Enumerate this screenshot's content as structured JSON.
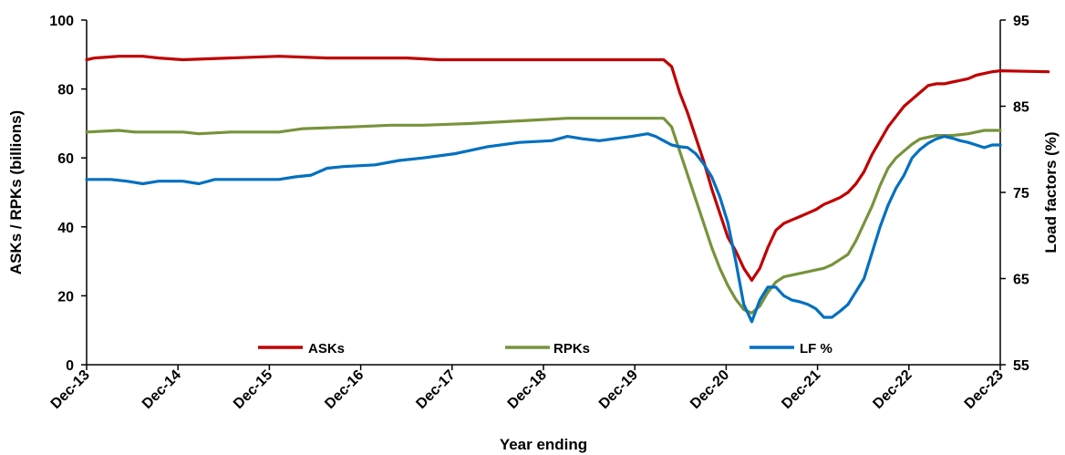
{
  "chart_data": {
    "type": "line",
    "xlabel": "Year ending",
    "ylabel": "ASKs / RPKs (billions)",
    "y2label": "Load factors (%)",
    "x_ticks": [
      "Dec-13",
      "Dec-14",
      "Dec-15",
      "Dec-16",
      "Dec-17",
      "Dec-18",
      "Dec-19",
      "Dec-20",
      "Dec-21",
      "Dec-22",
      "Dec-23"
    ],
    "ylim": [
      0,
      100
    ],
    "y_ticks": [
      0,
      20,
      40,
      60,
      80,
      100
    ],
    "y2lim": [
      55,
      95
    ],
    "y2_ticks": [
      55,
      65,
      75,
      85,
      95
    ],
    "grid": false,
    "legend": "bottom-inside",
    "series": [
      {
        "name": "ASKs",
        "axis": "left",
        "color": "#C00000",
        "values": [
          [
            0,
            88.5
          ],
          [
            1,
            89
          ],
          [
            4,
            89.5
          ],
          [
            7,
            89.5
          ],
          [
            9,
            89
          ],
          [
            12,
            88.5
          ],
          [
            24,
            89.5
          ],
          [
            30,
            89
          ],
          [
            40,
            89
          ],
          [
            44,
            88.5
          ],
          [
            58,
            88.5
          ],
          [
            60,
            88.5
          ],
          [
            64,
            88.5
          ],
          [
            70,
            88.5
          ],
          [
            72,
            88.5
          ],
          [
            73,
            86.5
          ],
          [
            74,
            79
          ],
          [
            75,
            73
          ],
          [
            76,
            66
          ],
          [
            77,
            59
          ],
          [
            78,
            51
          ],
          [
            79,
            44
          ],
          [
            80,
            37
          ],
          [
            81,
            33
          ],
          [
            82,
            28
          ],
          [
            83,
            24.5
          ],
          [
            84,
            28
          ],
          [
            85,
            34
          ],
          [
            86,
            39
          ],
          [
            87,
            41
          ],
          [
            88,
            42
          ],
          [
            89,
            43
          ],
          [
            90,
            44
          ],
          [
            91,
            45
          ],
          [
            92,
            46.5
          ],
          [
            93,
            47.5
          ],
          [
            94,
            48.5
          ],
          [
            95,
            50
          ],
          [
            96,
            52.5
          ],
          [
            97,
            56
          ],
          [
            98,
            61
          ],
          [
            99,
            65
          ],
          [
            100,
            69
          ],
          [
            101,
            72
          ],
          [
            102,
            75
          ],
          [
            103,
            77
          ],
          [
            104,
            79
          ],
          [
            105,
            81
          ],
          [
            106,
            81.5
          ],
          [
            107,
            81.5
          ],
          [
            108,
            82
          ],
          [
            109,
            82.5
          ],
          [
            110,
            83
          ],
          [
            111,
            84
          ],
          [
            112,
            84.5
          ],
          [
            113,
            85
          ],
          [
            114,
            85.3
          ],
          [
            120,
            85
          ]
        ]
      },
      {
        "name": "RPKs",
        "axis": "left",
        "color": "#77933C",
        "values": [
          [
            0,
            67.5
          ],
          [
            4,
            68
          ],
          [
            6,
            67.5
          ],
          [
            12,
            67.5
          ],
          [
            14,
            67
          ],
          [
            18,
            67.5
          ],
          [
            24,
            67.5
          ],
          [
            27,
            68.5
          ],
          [
            33,
            69
          ],
          [
            38,
            69.5
          ],
          [
            42,
            69.5
          ],
          [
            48,
            70
          ],
          [
            52,
            70.5
          ],
          [
            56,
            71
          ],
          [
            60,
            71.5
          ],
          [
            70,
            71.5
          ],
          [
            72,
            71.5
          ],
          [
            73,
            69
          ],
          [
            74,
            62
          ],
          [
            75,
            55
          ],
          [
            76,
            48
          ],
          [
            77,
            41
          ],
          [
            78,
            34
          ],
          [
            79,
            28
          ],
          [
            80,
            23
          ],
          [
            81,
            19
          ],
          [
            82,
            16
          ],
          [
            83,
            15
          ],
          [
            84,
            17
          ],
          [
            85,
            21
          ],
          [
            86,
            24
          ],
          [
            87,
            25.5
          ],
          [
            88,
            26
          ],
          [
            89,
            26.5
          ],
          [
            90,
            27
          ],
          [
            91,
            27.5
          ],
          [
            92,
            28
          ],
          [
            93,
            29
          ],
          [
            94,
            30.5
          ],
          [
            95,
            32
          ],
          [
            96,
            36
          ],
          [
            97,
            41
          ],
          [
            98,
            46
          ],
          [
            99,
            52
          ],
          [
            100,
            57
          ],
          [
            101,
            60
          ],
          [
            102,
            62
          ],
          [
            103,
            64
          ],
          [
            104,
            65.5
          ],
          [
            105,
            66
          ],
          [
            106,
            66.5
          ],
          [
            108,
            66.5
          ],
          [
            110,
            67
          ],
          [
            112,
            68
          ],
          [
            114,
            68
          ]
        ]
      },
      {
        "name": "LF %",
        "axis": "right",
        "color": "#0070C0",
        "values": [
          [
            0,
            76.5
          ],
          [
            3,
            76.5
          ],
          [
            5,
            76.3
          ],
          [
            7,
            76
          ],
          [
            9,
            76.3
          ],
          [
            12,
            76.3
          ],
          [
            14,
            76
          ],
          [
            16,
            76.5
          ],
          [
            24,
            76.5
          ],
          [
            26,
            76.8
          ],
          [
            28,
            77
          ],
          [
            30,
            77.8
          ],
          [
            32,
            78
          ],
          [
            36,
            78.2
          ],
          [
            39,
            78.7
          ],
          [
            42,
            79
          ],
          [
            46,
            79.5
          ],
          [
            50,
            80.3
          ],
          [
            54,
            80.8
          ],
          [
            58,
            81
          ],
          [
            60,
            81.5
          ],
          [
            62,
            81.2
          ],
          [
            64,
            81
          ],
          [
            68,
            81.5
          ],
          [
            70,
            81.8
          ],
          [
            71,
            81.5
          ],
          [
            72,
            81
          ],
          [
            73,
            80.5
          ],
          [
            74,
            80.3
          ],
          [
            75,
            80.2
          ],
          [
            76,
            79.5
          ],
          [
            77,
            78.3
          ],
          [
            78,
            76.8
          ],
          [
            79,
            74.5
          ],
          [
            80,
            71.5
          ],
          [
            81,
            67
          ],
          [
            82,
            62
          ],
          [
            83,
            60
          ],
          [
            84,
            62.5
          ],
          [
            85,
            64
          ],
          [
            86,
            64
          ],
          [
            87,
            63
          ],
          [
            88,
            62.5
          ],
          [
            89,
            62.3
          ],
          [
            90,
            62
          ],
          [
            91,
            61.5
          ],
          [
            92,
            60.5
          ],
          [
            93,
            60.5
          ],
          [
            94,
            61.2
          ],
          [
            95,
            62
          ],
          [
            96,
            63.5
          ],
          [
            97,
            65
          ],
          [
            98,
            68
          ],
          [
            99,
            71
          ],
          [
            100,
            73.5
          ],
          [
            101,
            75.5
          ],
          [
            102,
            77
          ],
          [
            103,
            79
          ],
          [
            104,
            80
          ],
          [
            105,
            80.7
          ],
          [
            106,
            81.2
          ],
          [
            107,
            81.5
          ],
          [
            108,
            81.3
          ],
          [
            109,
            81
          ],
          [
            110,
            80.8
          ],
          [
            111,
            80.5
          ],
          [
            112,
            80.2
          ],
          [
            113,
            80.5
          ],
          [
            114,
            80.5
          ]
        ]
      }
    ],
    "x_domain": [
      0,
      114
    ]
  }
}
